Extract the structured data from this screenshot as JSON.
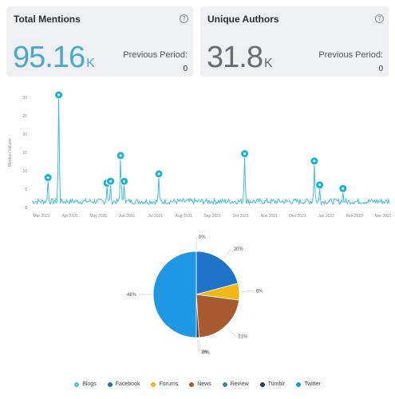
{
  "cards": {
    "mentions": {
      "title": "Total Mentions",
      "value": "95.16",
      "unit": "K",
      "prev_label": "Previous Period:",
      "prev_value": "0"
    },
    "authors": {
      "title": "Unique Authors",
      "value": "31.8",
      "unit": "K",
      "prev_label": "Previous Period:",
      "prev_value": "0"
    }
  },
  "info_icon": "?",
  "chart_data": [
    {
      "type": "line",
      "ylabel": "Mention Volume",
      "ylim": [
        0,
        30
      ],
      "yticks": [
        "0",
        "5",
        "10",
        "15",
        "20",
        "25",
        "30"
      ],
      "xticks": [
        "Mar 2021",
        "Apr 2021",
        "May 2021",
        "Jun 2021",
        "Jul 2021",
        "Aug 2021",
        "Sep 2021",
        "Oct 2021",
        "Nov 2021",
        "Dec 2021",
        "Jan 2022",
        "Feb 2022",
        "Mar 2022"
      ],
      "line_color": "#3fbfd8",
      "peaks": [
        {
          "x": 0.045,
          "y": 7.5
        },
        {
          "x": 0.075,
          "y": 30
        },
        {
          "x": 0.21,
          "y": 6.0
        },
        {
          "x": 0.22,
          "y": 6.5
        },
        {
          "x": 0.248,
          "y": 13.5
        },
        {
          "x": 0.258,
          "y": 6.5
        },
        {
          "x": 0.355,
          "y": 8.5
        },
        {
          "x": 0.595,
          "y": 14.0
        },
        {
          "x": 0.79,
          "y": 12.0
        },
        {
          "x": 0.805,
          "y": 5.5
        },
        {
          "x": 0.87,
          "y": 4.5
        }
      ]
    },
    {
      "type": "pie",
      "categories": [
        "Blogs",
        "Facebook",
        "Forums",
        "News",
        "Review",
        "Tumblr",
        "Twitter"
      ],
      "values": [
        0,
        20,
        6,
        21,
        0,
        1,
        48
      ],
      "labels": [
        "0%",
        "20%",
        "6%",
        "21%",
        "0%",
        "1%",
        "48%"
      ],
      "colors": [
        "#4fc7d9",
        "#1e72c8",
        "#f2b619",
        "#a85a31",
        "#3b8f94",
        "#2f3d49",
        "#1f97e3"
      ]
    }
  ]
}
